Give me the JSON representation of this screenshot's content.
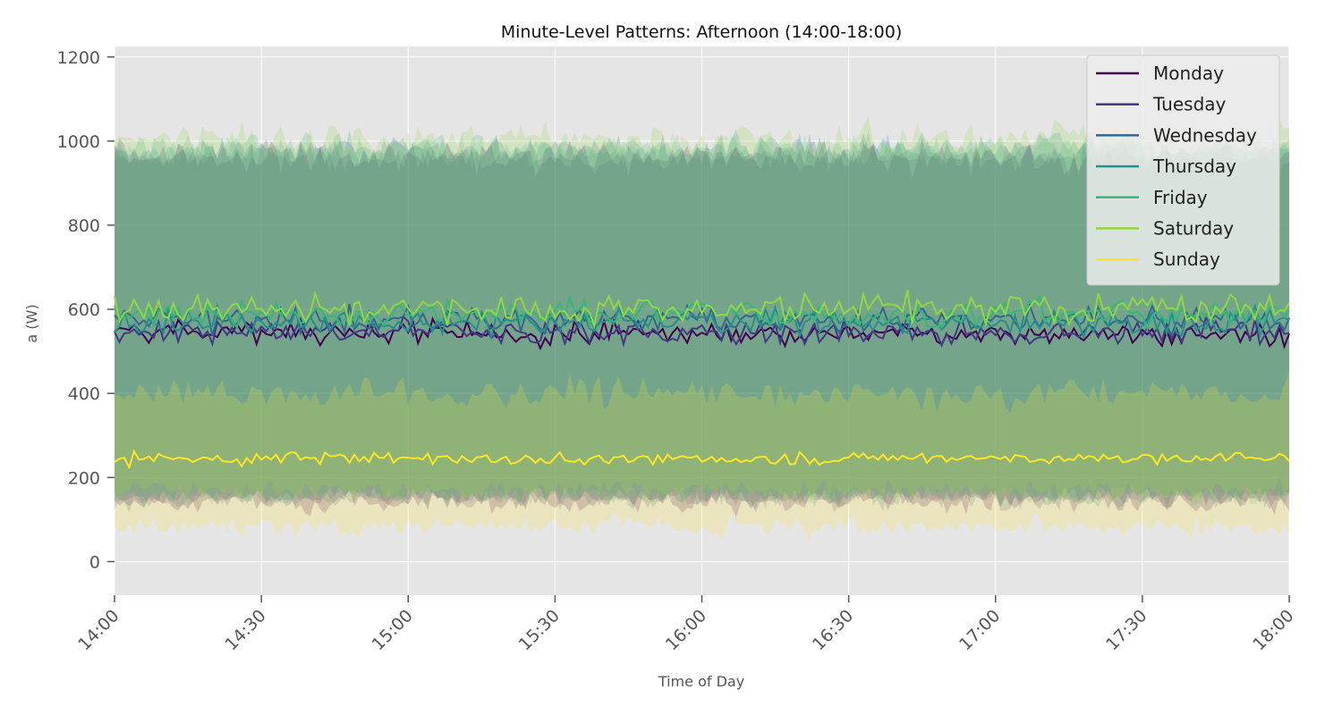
{
  "chart_data": {
    "type": "line",
    "title": "Minute-Level Patterns: Afternoon (14:00-18:00)",
    "xlabel": "Time of Day",
    "ylabel": "a (W)",
    "x_ticks": [
      "14:00",
      "14:30",
      "15:00",
      "15:30",
      "16:00",
      "16:30",
      "17:00",
      "17:30",
      "18:00"
    ],
    "x_range_minutes": [
      0,
      240
    ],
    "y_ticks": [
      0,
      200,
      400,
      600,
      800,
      1000,
      1200
    ],
    "ylim": [
      -80,
      1225
    ],
    "grid": true,
    "legend_position": "top-right",
    "band": "shaded band around each series",
    "series": [
      {
        "name": "Monday",
        "color": "#440154",
        "mean": 545,
        "noise": 25,
        "band_low": 140,
        "band_high": 960
      },
      {
        "name": "Tuesday",
        "color": "#443983",
        "mean": 545,
        "noise": 28,
        "band_low": 150,
        "band_high": 960
      },
      {
        "name": "Wednesday",
        "color": "#31688e",
        "mean": 575,
        "noise": 28,
        "band_low": 150,
        "band_high": 975
      },
      {
        "name": "Thursday",
        "color": "#21918c",
        "mean": 570,
        "noise": 28,
        "band_low": 160,
        "band_high": 980
      },
      {
        "name": "Friday",
        "color": "#35b779",
        "mean": 590,
        "noise": 30,
        "band_low": 160,
        "band_high": 985
      },
      {
        "name": "Saturday",
        "color": "#90d743",
        "mean": 600,
        "noise": 32,
        "band_low": 170,
        "band_high": 1010
      },
      {
        "name": "Sunday",
        "color": "#fde725",
        "mean": 245,
        "noise": 14,
        "band_low": 85,
        "band_high": 400
      }
    ]
  }
}
